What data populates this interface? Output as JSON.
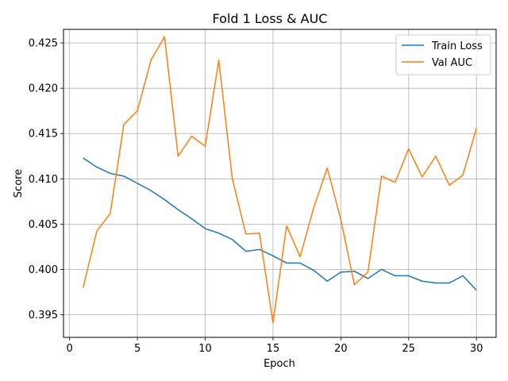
{
  "chart_data": {
    "type": "line",
    "title": "Fold 1 Loss & AUC",
    "xlabel": "Epoch",
    "ylabel": "Score",
    "xlim": [
      -0.45,
      31.45
    ],
    "ylim": [
      0.3925,
      0.4265
    ],
    "xticks": [
      0,
      5,
      10,
      15,
      20,
      25,
      30
    ],
    "yticks": [
      0.395,
      0.4,
      0.405,
      0.41,
      0.415,
      0.42,
      0.425
    ],
    "ytick_labels": [
      "0.395",
      "0.400",
      "0.405",
      "0.410",
      "0.415",
      "0.420",
      "0.425"
    ],
    "grid": true,
    "legend_position": "top-right",
    "x": [
      1,
      2,
      3,
      4,
      5,
      6,
      7,
      8,
      9,
      10,
      11,
      12,
      13,
      14,
      15,
      16,
      17,
      18,
      19,
      20,
      21,
      22,
      23,
      24,
      25,
      26,
      27,
      28,
      29,
      30
    ],
    "series": [
      {
        "name": "Train Loss",
        "color": "#1f77b4",
        "values": [
          0.4123,
          0.4113,
          0.4106,
          0.4103,
          0.4095,
          0.4087,
          0.4077,
          0.4066,
          0.4056,
          0.4045,
          0.404,
          0.4033,
          0.402,
          0.4022,
          0.4015,
          0.4007,
          0.4007,
          0.3999,
          0.3987,
          0.3997,
          0.3998,
          0.399,
          0.4,
          0.3993,
          0.3993,
          0.3987,
          0.3985,
          0.3985,
          0.3993,
          0.3977
        ]
      },
      {
        "name": "Val AUC",
        "color": "#ff7f0e",
        "values": [
          0.398,
          0.4042,
          0.4062,
          0.416,
          0.4175,
          0.4231,
          0.4257,
          0.4125,
          0.4147,
          0.4136,
          0.4231,
          0.41,
          0.4039,
          0.404,
          0.3941,
          0.4048,
          0.4014,
          0.4068,
          0.4112,
          0.4055,
          0.3983,
          0.3997,
          0.4103,
          0.4096,
          0.4133,
          0.4102,
          0.4125,
          0.4093,
          0.4104,
          0.4156
        ]
      }
    ]
  }
}
